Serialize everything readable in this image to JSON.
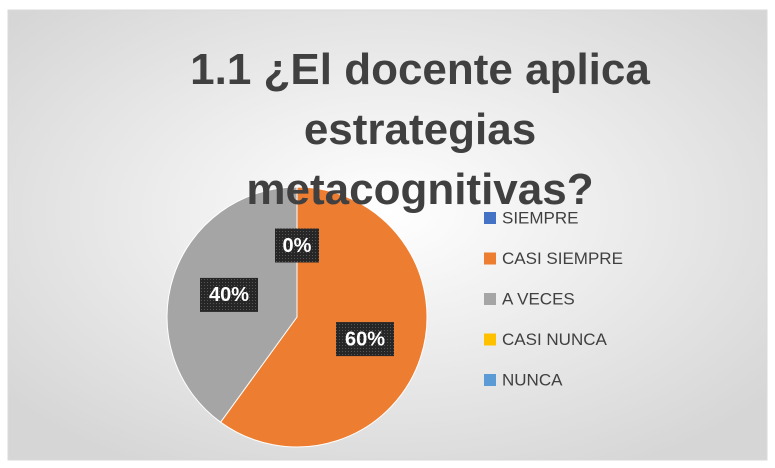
{
  "chart_data": {
    "type": "pie",
    "title": "1.1 ¿El docente aplica estrategias metacognitivas?",
    "categories": [
      "SIEMPRE",
      "CASI SIEMPRE",
      "A VECES",
      "CASI NUNCA",
      "NUNCA"
    ],
    "values": [
      0,
      60,
      40,
      0,
      0
    ],
    "value_labels": [
      "0%",
      "60%",
      "40%",
      null,
      null
    ],
    "colors": [
      "#4472c4",
      "#ed7d31",
      "#a5a5a5",
      "#ffc000",
      "#5b9bd5"
    ],
    "legend": "right"
  }
}
